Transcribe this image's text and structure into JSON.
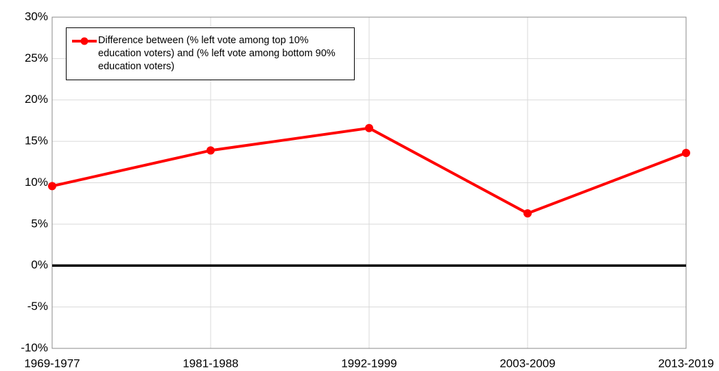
{
  "chart_data": {
    "type": "line",
    "categories": [
      "1969-1977",
      "1981-1988",
      "1992-1999",
      "2003-2009",
      "2013-2019"
    ],
    "series": [
      {
        "name": "Difference between (% left vote among top 10% education voters) and (% left vote among bottom 90% education voters)",
        "color": "#ff0000",
        "values": [
          9.6,
          13.9,
          16.6,
          6.3,
          13.6
        ]
      }
    ],
    "ylim": [
      -10,
      30
    ],
    "yticks": [
      {
        "value": -10,
        "label": "-10%"
      },
      {
        "value": -5,
        "label": "-5%"
      },
      {
        "value": 0,
        "label": "0%"
      },
      {
        "value": 5,
        "label": "5%"
      },
      {
        "value": 10,
        "label": "10%"
      },
      {
        "value": 15,
        "label": "15%"
      },
      {
        "value": 20,
        "label": "20%"
      },
      {
        "value": 25,
        "label": "25%"
      },
      {
        "value": 30,
        "label": "30%"
      }
    ],
    "grid": true,
    "legend": "upper left"
  }
}
